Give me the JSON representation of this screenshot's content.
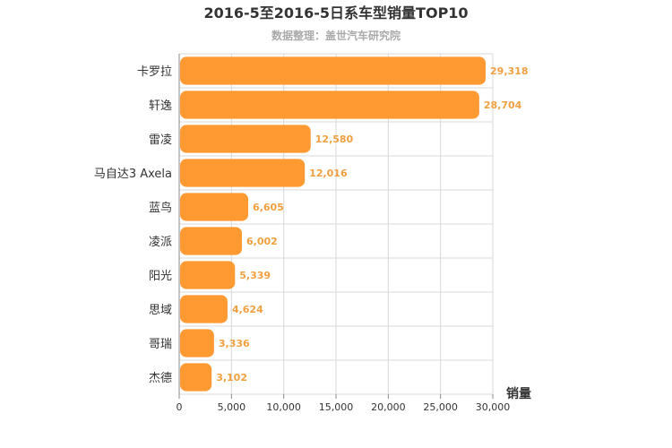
{
  "chart_data": {
    "type": "bar",
    "orientation": "horizontal",
    "title": "2016-5至2016-5日系车型销量TOP10",
    "subtitle": "数据整理：盖世汽车研究院",
    "xlabel": "销量",
    "ylabel": "",
    "xlim": [
      0,
      30000
    ],
    "x_ticks": [
      "0",
      "5,000",
      "10,000",
      "15,000",
      "20,000",
      "25,000",
      "30,000"
    ],
    "grid": true,
    "categories": [
      "卡罗拉",
      "轩逸",
      "雷凌",
      "马自达3 Axela",
      "蓝鸟",
      "凌派",
      "阳光",
      "思域",
      "哥瑞",
      "杰德"
    ],
    "values": [
      29318,
      28704,
      12580,
      12016,
      6605,
      6002,
      5339,
      4624,
      3336,
      3102
    ],
    "value_labels": [
      "29,318",
      "28,704",
      "12,580",
      "12,016",
      "6,605",
      "6,002",
      "5,339",
      "4,624",
      "3,336",
      "3,102"
    ],
    "colors": {
      "bar": "#ff9a33",
      "value_label": "#f0a040",
      "title": "#333333",
      "subtitle": "#aaaaaa",
      "grid": "#d8d8d8",
      "axis": "#888888",
      "text": "#333333"
    }
  }
}
